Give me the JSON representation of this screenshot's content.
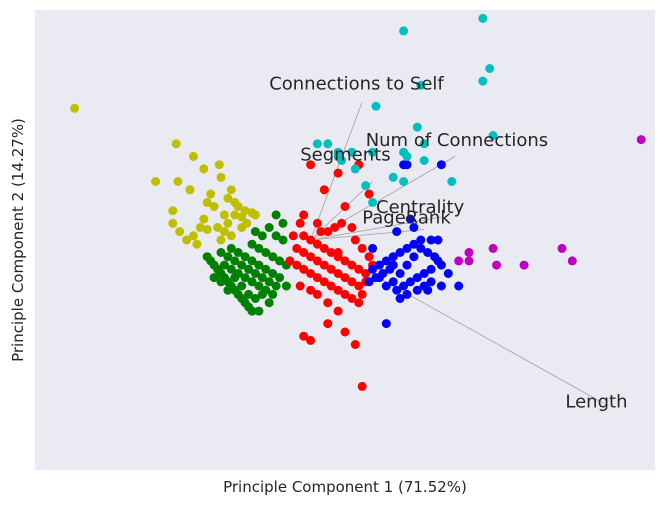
{
  "chart_data": {
    "type": "scatter",
    "title": "",
    "xlabel": "Principle Component 1 (71.52%)",
    "ylabel": "Principle Component 2 (14.27%)",
    "xlim": [
      -0.9,
      0.9
    ],
    "ylim": [
      -0.55,
      0.55
    ],
    "x_ticks_shown": false,
    "y_ticks_shown": false,
    "grid": false,
    "background": "#eaeaf2",
    "series": [
      {
        "color": "#bfbf00",
        "points": [
          [
            -0.785,
            0.315
          ],
          [
            -0.49,
            0.23
          ],
          [
            -0.485,
            0.14
          ],
          [
            -0.5,
            0.07
          ],
          [
            -0.5,
            0.04
          ],
          [
            -0.55,
            0.14
          ],
          [
            -0.45,
            0.12
          ],
          [
            -0.44,
            0.2
          ],
          [
            -0.41,
            0.17
          ],
          [
            -0.4,
            0.09
          ],
          [
            -0.39,
            0.11
          ],
          [
            -0.365,
            0.18
          ],
          [
            -0.36,
            0.15
          ],
          [
            -0.34,
            0.1
          ],
          [
            -0.33,
            0.12
          ],
          [
            -0.32,
            0.09
          ],
          [
            -0.32,
            0.06
          ],
          [
            -0.31,
            0.08
          ],
          [
            -0.3,
            0.055
          ],
          [
            -0.29,
            0.07
          ],
          [
            -0.285,
            0.04
          ],
          [
            -0.27,
            0.065
          ],
          [
            -0.3,
            0.03
          ],
          [
            -0.36,
            0.0
          ],
          [
            -0.35,
            0.02
          ],
          [
            -0.33,
            0.01
          ],
          [
            -0.37,
            0.03
          ],
          [
            -0.4,
            0.025
          ],
          [
            -0.42,
            0.03
          ],
          [
            -0.44,
            0.01
          ],
          [
            -0.46,
            0.0
          ],
          [
            -0.48,
            0.02
          ],
          [
            -0.43,
            -0.01
          ],
          [
            -0.41,
            0.05
          ],
          [
            -0.38,
            0.08
          ],
          [
            -0.26,
            0.06
          ],
          [
            -0.34,
            0.04
          ],
          [
            -0.35,
            0.06
          ]
        ]
      },
      {
        "color": "#008000",
        "points": [
          [
            -0.4,
            -0.04
          ],
          [
            -0.39,
            -0.05
          ],
          [
            -0.38,
            -0.06
          ],
          [
            -0.37,
            -0.07
          ],
          [
            -0.36,
            -0.08
          ],
          [
            -0.35,
            -0.09
          ],
          [
            -0.34,
            -0.1
          ],
          [
            -0.33,
            -0.11
          ],
          [
            -0.32,
            -0.12
          ],
          [
            -0.31,
            -0.13
          ],
          [
            -0.3,
            -0.14
          ],
          [
            -0.29,
            -0.15
          ],
          [
            -0.28,
            -0.16
          ],
          [
            -0.27,
            -0.17
          ],
          [
            -0.36,
            -0.03
          ],
          [
            -0.34,
            -0.04
          ],
          [
            -0.32,
            -0.05
          ],
          [
            -0.3,
            -0.06
          ],
          [
            -0.28,
            -0.07
          ],
          [
            -0.26,
            -0.08
          ],
          [
            -0.24,
            -0.09
          ],
          [
            -0.22,
            -0.1
          ],
          [
            -0.2,
            -0.11
          ],
          [
            -0.33,
            -0.02
          ],
          [
            -0.31,
            -0.03
          ],
          [
            -0.29,
            -0.04
          ],
          [
            -0.27,
            -0.05
          ],
          [
            -0.25,
            -0.06
          ],
          [
            -0.23,
            -0.07
          ],
          [
            -0.21,
            -0.08
          ],
          [
            -0.35,
            -0.06
          ],
          [
            -0.33,
            -0.07
          ],
          [
            -0.31,
            -0.08
          ],
          [
            -0.29,
            -0.09
          ],
          [
            -0.27,
            -0.1
          ],
          [
            -0.25,
            -0.11
          ],
          [
            -0.23,
            -0.12
          ],
          [
            -0.21,
            -0.13
          ],
          [
            -0.27,
            -0.01
          ],
          [
            -0.25,
            -0.02
          ],
          [
            -0.23,
            -0.03
          ],
          [
            -0.21,
            -0.04
          ],
          [
            -0.19,
            -0.05
          ],
          [
            -0.17,
            -0.06
          ],
          [
            -0.22,
            0.03
          ],
          [
            -0.2,
            0.01
          ],
          [
            -0.18,
            0.0
          ],
          [
            -0.24,
            0.01
          ],
          [
            -0.26,
            0.02
          ],
          [
            -0.2,
            0.06
          ],
          [
            -0.18,
            0.04
          ],
          [
            -0.38,
            -0.09
          ],
          [
            -0.36,
            -0.1
          ],
          [
            -0.34,
            -0.12
          ],
          [
            -0.24,
            -0.13
          ],
          [
            -0.26,
            -0.14
          ],
          [
            -0.28,
            -0.13
          ],
          [
            -0.3,
            -0.11
          ],
          [
            -0.32,
            -0.09
          ],
          [
            -0.25,
            -0.17
          ],
          [
            -0.22,
            -0.15
          ],
          [
            -0.19,
            -0.09
          ],
          [
            -0.17,
            -0.11
          ]
        ]
      },
      {
        "color": "#ff0000",
        "points": [
          [
            -0.1,
            0.18
          ],
          [
            -0.06,
            0.12
          ],
          [
            -0.02,
            0.16
          ],
          [
            0.04,
            0.18
          ],
          [
            0.07,
            0.11
          ],
          [
            0.0,
            0.08
          ],
          [
            -0.05,
            0.02
          ],
          [
            -0.03,
            0.03
          ],
          [
            -0.12,
            0.06
          ],
          [
            -0.13,
            0.04
          ],
          [
            -0.15,
            0.01
          ],
          [
            -0.12,
            0.01
          ],
          [
            -0.1,
            0.0
          ],
          [
            -0.08,
            -0.01
          ],
          [
            -0.06,
            -0.02
          ],
          [
            -0.04,
            -0.03
          ],
          [
            -0.02,
            -0.04
          ],
          [
            0.0,
            -0.05
          ],
          [
            0.02,
            -0.06
          ],
          [
            0.04,
            -0.07
          ],
          [
            0.06,
            -0.08
          ],
          [
            -0.14,
            -0.02
          ],
          [
            -0.12,
            -0.03
          ],
          [
            -0.1,
            -0.04
          ],
          [
            -0.08,
            -0.05
          ],
          [
            -0.06,
            -0.06
          ],
          [
            -0.04,
            -0.07
          ],
          [
            -0.02,
            -0.08
          ],
          [
            0.0,
            -0.09
          ],
          [
            0.02,
            -0.1
          ],
          [
            0.04,
            -0.11
          ],
          [
            -0.16,
            -0.05
          ],
          [
            -0.14,
            -0.06
          ],
          [
            -0.12,
            -0.07
          ],
          [
            -0.1,
            -0.08
          ],
          [
            -0.08,
            -0.09
          ],
          [
            -0.06,
            -0.1
          ],
          [
            -0.04,
            -0.11
          ],
          [
            -0.02,
            -0.12
          ],
          [
            0.0,
            -0.13
          ],
          [
            0.02,
            -0.14
          ],
          [
            -0.1,
            -0.12
          ],
          [
            -0.08,
            -0.13
          ],
          [
            -0.05,
            -0.15
          ],
          [
            -0.02,
            -0.17
          ],
          [
            0.04,
            -0.15
          ],
          [
            0.05,
            -0.13
          ],
          [
            0.06,
            -0.1
          ],
          [
            0.08,
            -0.06
          ],
          [
            0.07,
            -0.04
          ],
          [
            0.05,
            -0.02
          ],
          [
            0.03,
            0.0
          ],
          [
            0.02,
            0.03
          ],
          [
            -0.01,
            0.04
          ],
          [
            -0.07,
            0.02
          ],
          [
            -0.13,
            -0.11
          ],
          [
            -0.12,
            -0.23
          ],
          [
            -0.1,
            -0.24
          ],
          [
            -0.05,
            -0.2
          ],
          [
            0.0,
            -0.22
          ],
          [
            0.03,
            -0.25
          ],
          [
            0.05,
            -0.35
          ],
          [
            -0.02,
            -0.03
          ],
          [
            -0.08,
            0.04
          ]
        ]
      },
      {
        "color": "#0000ff",
        "points": [
          [
            0.18,
            0.18
          ],
          [
            0.17,
            0.18
          ],
          [
            0.28,
            0.18
          ],
          [
            0.19,
            0.05
          ],
          [
            0.25,
            0.0
          ],
          [
            0.27,
            0.0
          ],
          [
            0.22,
            -0.02
          ],
          [
            0.24,
            -0.03
          ],
          [
            0.26,
            -0.04
          ],
          [
            0.28,
            -0.06
          ],
          [
            0.3,
            -0.08
          ],
          [
            0.2,
            -0.04
          ],
          [
            0.18,
            -0.06
          ],
          [
            0.16,
            -0.08
          ],
          [
            0.14,
            -0.1
          ],
          [
            0.12,
            -0.11
          ],
          [
            0.1,
            -0.09
          ],
          [
            0.08,
            -0.07
          ],
          [
            0.1,
            -0.06
          ],
          [
            0.12,
            -0.05
          ],
          [
            0.14,
            -0.04
          ],
          [
            0.16,
            -0.03
          ],
          [
            0.18,
            -0.02
          ],
          [
            0.2,
            -0.01
          ],
          [
            0.22,
            0.0
          ],
          [
            0.15,
            -0.12
          ],
          [
            0.17,
            -0.11
          ],
          [
            0.19,
            -0.1
          ],
          [
            0.21,
            -0.09
          ],
          [
            0.23,
            -0.08
          ],
          [
            0.25,
            -0.07
          ],
          [
            0.27,
            -0.05
          ],
          [
            0.13,
            -0.07
          ],
          [
            0.11,
            -0.08
          ],
          [
            0.09,
            -0.09
          ],
          [
            0.07,
            -0.1
          ],
          [
            0.21,
            -0.12
          ],
          [
            0.23,
            -0.11
          ],
          [
            0.25,
            -0.1
          ],
          [
            0.18,
            -0.13
          ],
          [
            0.16,
            -0.14
          ],
          [
            0.33,
            -0.11
          ],
          [
            0.12,
            -0.2
          ],
          [
            0.08,
            -0.02
          ],
          [
            0.15,
            0.02
          ],
          [
            0.2,
            0.03
          ],
          [
            0.14,
            -0.06
          ],
          [
            0.24,
            -0.12
          ],
          [
            0.28,
            -0.11
          ]
        ]
      },
      {
        "color": "#00bfbf",
        "points": [
          [
            0.17,
            0.5
          ],
          [
            0.4,
            0.53
          ],
          [
            0.42,
            0.41
          ],
          [
            0.4,
            0.38
          ],
          [
            0.22,
            0.37
          ],
          [
            0.21,
            0.27
          ],
          [
            0.43,
            0.25
          ],
          [
            0.23,
            0.23
          ],
          [
            0.09,
            0.32
          ],
          [
            -0.08,
            0.23
          ],
          [
            -0.05,
            0.23
          ],
          [
            -0.02,
            0.21
          ],
          [
            -0.01,
            0.19
          ],
          [
            0.02,
            0.21
          ],
          [
            0.08,
            0.21
          ],
          [
            0.17,
            0.21
          ],
          [
            0.18,
            0.2
          ],
          [
            0.23,
            0.19
          ],
          [
            -0.02,
            0.2
          ],
          [
            0.03,
            0.17
          ],
          [
            0.14,
            0.15
          ],
          [
            0.31,
            0.14
          ],
          [
            0.06,
            0.13
          ],
          [
            0.08,
            0.09
          ],
          [
            0.17,
            0.14
          ]
        ]
      },
      {
        "color": "#bf00bf",
        "points": [
          [
            0.86,
            0.24
          ],
          [
            0.63,
            -0.02
          ],
          [
            0.66,
            -0.05
          ],
          [
            0.52,
            -0.06
          ],
          [
            0.43,
            -0.02
          ],
          [
            0.44,
            -0.06
          ],
          [
            0.33,
            -0.05
          ],
          [
            0.36,
            -0.03
          ],
          [
            0.36,
            -0.05
          ]
        ]
      }
    ],
    "loadings": [
      {
        "label": "Connections to Self",
        "x": 0.05,
        "y": 0.33,
        "text_x": -0.22,
        "text_y": 0.36
      },
      {
        "label": "Num of Connections",
        "x": 0.32,
        "y": 0.2,
        "text_x": 0.06,
        "text_y": 0.225
      },
      {
        "label": "Segments",
        "x": 0.08,
        "y": 0.14,
        "text_x": -0.13,
        "text_y": 0.19
      },
      {
        "label": "Centrality",
        "x": 0.28,
        "y": 0.055,
        "text_x": 0.09,
        "text_y": 0.065
      },
      {
        "label": "PageRank",
        "x": 0.23,
        "y": 0.025,
        "text_x": 0.05,
        "text_y": 0.04
      },
      {
        "label": "Length",
        "x": 0.75,
        "y": -0.39,
        "text_x": 0.64,
        "text_y": -0.4
      }
    ],
    "loading_origin": [
      -0.1,
      0.0
    ]
  }
}
